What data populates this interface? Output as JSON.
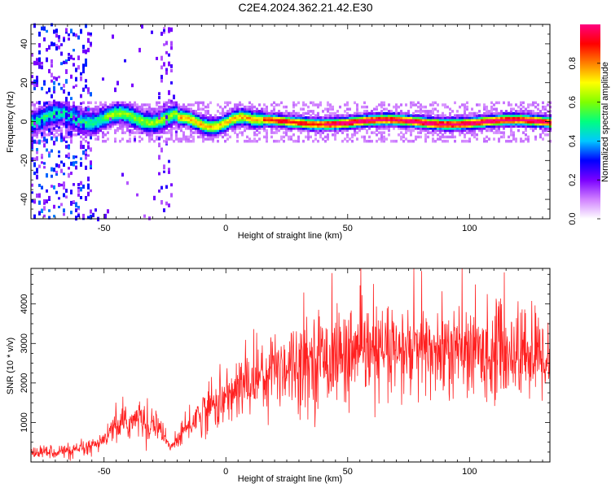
{
  "title": "C2E4.2024.362.21.42.E30",
  "chart_data": [
    {
      "type": "heatmap",
      "xlabel": "Height of straight line (km)",
      "ylabel": "Frequency (Hz)",
      "xlim": [
        -80,
        133
      ],
      "ylim": [
        -50,
        50
      ],
      "xticks": [
        -50,
        0,
        50,
        100
      ],
      "xtick_labels": [
        "-50",
        "0",
        "50",
        "100"
      ],
      "yticks": [
        -40,
        -20,
        0,
        20,
        40
      ],
      "ytick_labels": [
        "-40",
        "-20",
        "0",
        "20",
        "40"
      ],
      "colorbar": {
        "label": "Normalized spectral amplitude",
        "range": [
          0,
          1
        ],
        "ticks": [
          0.0,
          0.2,
          0.4,
          0.6,
          0.8
        ],
        "tick_labels": [
          "0.0",
          "0.2",
          "0.4",
          "0.6",
          "0.8"
        ],
        "colormap": [
          "#ffffff",
          "#d080ff",
          "#7a00ff",
          "#0000ff",
          "#00c8ff",
          "#00ff80",
          "#80ff00",
          "#ffff00",
          "#ff8000",
          "#ff0000",
          "#ff0080"
        ]
      },
      "grid": false
    },
    {
      "type": "line",
      "xlabel": "Height of straight line (km)",
      "ylabel": "SNR (10 * v/v)",
      "xlim": [
        -80,
        133
      ],
      "ylim": [
        0,
        4900
      ],
      "xticks": [
        -50,
        0,
        50,
        100
      ],
      "xtick_labels": [
        "-50",
        "0",
        "50",
        "100"
      ],
      "yticks": [
        1000,
        2000,
        3000,
        4000
      ],
      "ytick_labels": [
        "1000",
        "2000",
        "3000",
        "4000"
      ],
      "color": "#ff2020",
      "grid": false,
      "trend": {
        "x": [
          -80,
          -60,
          -52,
          -45,
          -35,
          -28,
          -23,
          -18,
          -12,
          -5,
          0,
          5,
          10,
          20,
          30,
          40,
          50,
          60,
          70,
          80,
          90,
          100,
          110,
          120,
          133
        ],
        "y": [
          250,
          280,
          450,
          900,
          1100,
          950,
          350,
          700,
          1150,
          1450,
          1600,
          1850,
          2050,
          2400,
          2550,
          2650,
          2700,
          2750,
          2750,
          2800,
          2800,
          2750,
          2800,
          2750,
          2700
        ]
      }
    }
  ]
}
